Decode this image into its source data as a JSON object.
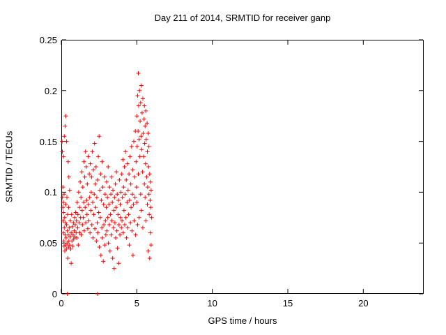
{
  "chart_data": {
    "type": "scatter",
    "title": "Day 211 of 2014, SRMTID for receiver ganp",
    "xlabel": "GPS time / hours",
    "ylabel": "SRMTID / TECUs",
    "xlim": [
      0,
      24
    ],
    "ylim": [
      0,
      0.25
    ],
    "grid": false,
    "legend": "none",
    "axis_color": "#000000",
    "xticks": {
      "values": [
        0,
        5,
        10,
        15,
        20
      ],
      "labels": [
        "0",
        "5",
        "10",
        "15",
        "20"
      ]
    },
    "yticks": {
      "values": [
        0,
        0.05,
        0.1,
        0.15,
        0.2,
        0.25
      ],
      "labels": [
        "0",
        "0.05",
        "0.1",
        "0.15",
        "0.2",
        "0.25"
      ]
    },
    "marker": {
      "shape": "plus",
      "color": "#ff0000",
      "size": 7
    },
    "series": [
      {
        "name": "SRMTID",
        "points": [
          [
            0.05,
            0.15
          ],
          [
            0.07,
            0.14
          ],
          [
            0.08,
            0.095
          ],
          [
            0.1,
            0.105
          ],
          [
            0.1,
            0.085
          ],
          [
            0.12,
            0.072
          ],
          [
            0.13,
            0.09
          ],
          [
            0.14,
            0.06
          ],
          [
            0.15,
            0.135
          ],
          [
            0.15,
            0.08
          ],
          [
            0.17,
            0.052
          ],
          [
            0.18,
            0.047
          ],
          [
            0.18,
            0.098
          ],
          [
            0.2,
            0.155
          ],
          [
            0.2,
            0.065
          ],
          [
            0.22,
            0.075
          ],
          [
            0.23,
            0.042
          ],
          [
            0.25,
            0.165
          ],
          [
            0.25,
            0.058
          ],
          [
            0.27,
            0.07
          ],
          [
            0.28,
            0.048
          ],
          [
            0.3,
            0.175
          ],
          [
            0.3,
            0.088
          ],
          [
            0.32,
            0.055
          ],
          [
            0.33,
            0.044
          ],
          [
            0.35,
            0.15
          ],
          [
            0.35,
            0.068
          ],
          [
            0.37,
            0.095
          ],
          [
            0.38,
            0.05
          ],
          [
            0.4,
            0.0
          ],
          [
            0.4,
            0.062
          ],
          [
            0.42,
            0.078
          ],
          [
            0.43,
            0.035
          ],
          [
            0.45,
            0.13
          ],
          [
            0.45,
            0.058
          ],
          [
            0.47,
            0.046
          ],
          [
            0.48,
            0.085
          ],
          [
            0.5,
            0.115
          ],
          [
            0.5,
            0.052
          ],
          [
            0.52,
            0.065
          ],
          [
            0.55,
            0.048
          ],
          [
            0.55,
            0.102
          ],
          [
            0.58,
            0.056
          ],
          [
            0.6,
            0.072
          ],
          [
            0.62,
            0.044
          ],
          [
            0.65,
            0.06
          ],
          [
            0.65,
            0.03
          ],
          [
            0.68,
            0.078
          ],
          [
            0.7,
            0.052
          ],
          [
            0.72,
            0.066
          ],
          [
            0.75,
            0.047
          ],
          [
            0.78,
            0.058
          ],
          [
            0.8,
            0.07
          ],
          [
            0.82,
            0.054
          ],
          [
            0.85,
            0.062
          ],
          [
            0.88,
            0.075
          ],
          [
            0.9,
            0.056
          ],
          [
            0.92,
            0.068
          ],
          [
            0.95,
            0.08
          ],
          [
            0.98,
            0.06
          ],
          [
            1.0,
            0.072
          ],
          [
            1.02,
            0.055
          ],
          [
            1.05,
            0.09
          ],
          [
            1.08,
            0.065
          ],
          [
            1.1,
            0.078
          ],
          [
            1.12,
            0.048
          ],
          [
            1.15,
            0.1
          ],
          [
            1.18,
            0.07
          ],
          [
            1.2,
            0.085
          ],
          [
            1.22,
            0.06
          ],
          [
            1.25,
            0.11
          ],
          [
            1.28,
            0.075
          ],
          [
            1.3,
            0.095
          ],
          [
            1.32,
            0.058
          ],
          [
            1.35,
            0.12
          ],
          [
            1.38,
            0.082
          ],
          [
            1.4,
            0.068
          ],
          [
            1.42,
            0.105
          ],
          [
            1.45,
            0.075
          ],
          [
            1.48,
            0.09
          ],
          [
            1.5,
            0.13
          ],
          [
            1.52,
            0.062
          ],
          [
            1.55,
            0.115
          ],
          [
            1.58,
            0.085
          ],
          [
            1.6,
            0.14
          ],
          [
            1.62,
            0.07
          ],
          [
            1.65,
            0.125
          ],
          [
            1.68,
            0.092
          ],
          [
            1.7,
            0.078
          ],
          [
            1.72,
            0.108
          ],
          [
            1.75,
            0.064
          ],
          [
            1.78,
            0.135
          ],
          [
            1.8,
            0.088
          ],
          [
            1.82,
            0.072
          ],
          [
            1.85,
            0.118
          ],
          [
            1.88,
            0.095
          ],
          [
            1.9,
            0.06
          ],
          [
            1.92,
            0.128
          ],
          [
            1.95,
            0.082
          ],
          [
            1.98,
            0.1
          ],
          [
            2.0,
            0.115
          ],
          [
            2.02,
            0.068
          ],
          [
            2.05,
            0.14
          ],
          [
            2.08,
            0.09
          ],
          [
            2.1,
            0.055
          ],
          [
            2.12,
            0.122
          ],
          [
            2.15,
            0.078
          ],
          [
            2.18,
            0.098
          ],
          [
            2.2,
            0.148
          ],
          [
            2.22,
            0.064
          ],
          [
            2.25,
            0.108
          ],
          [
            2.28,
            0.085
          ],
          [
            2.3,
            0.125
          ],
          [
            2.32,
            0.052
          ],
          [
            2.35,
            0.095
          ],
          [
            2.38,
            0.07
          ],
          [
            2.4,
            0.0
          ],
          [
            2.4,
            0.112
          ],
          [
            2.42,
            0.06
          ],
          [
            2.45,
            0.135
          ],
          [
            2.48,
            0.08
          ],
          [
            2.5,
            0.155
          ],
          [
            2.52,
            0.046
          ],
          [
            2.55,
            0.102
          ],
          [
            2.58,
            0.075
          ],
          [
            2.6,
            0.118
          ],
          [
            2.62,
            0.038
          ],
          [
            2.65,
            0.092
          ],
          [
            2.68,
            0.065
          ],
          [
            2.7,
            0.13
          ],
          [
            2.72,
            0.055
          ],
          [
            2.75,
            0.105
          ],
          [
            2.78,
            0.032
          ],
          [
            2.8,
            0.088
          ],
          [
            2.82,
            0.068
          ],
          [
            2.85,
            0.115
          ],
          [
            2.88,
            0.048
          ],
          [
            2.9,
            0.098
          ],
          [
            2.92,
            0.072
          ],
          [
            2.95,
            0.058
          ],
          [
            2.98,
            0.085
          ],
          [
            3.0,
            0.11
          ],
          [
            3.02,
            0.062
          ],
          [
            3.05,
            0.095
          ],
          [
            3.08,
            0.075
          ],
          [
            3.1,
            0.125
          ],
          [
            3.12,
            0.05
          ],
          [
            3.15,
            0.088
          ],
          [
            3.18,
            0.068
          ],
          [
            3.2,
            0.105
          ],
          [
            3.22,
            0.042
          ],
          [
            3.25,
            0.078
          ],
          [
            3.28,
            0.098
          ],
          [
            3.3,
            0.058
          ],
          [
            3.32,
            0.115
          ],
          [
            3.35,
            0.072
          ],
          [
            3.38,
            0.09
          ],
          [
            3.4,
            0.035
          ],
          [
            3.42,
            0.102
          ],
          [
            3.45,
            0.065
          ],
          [
            3.48,
            0.082
          ],
          [
            3.5,
            0.025
          ],
          [
            3.52,
            0.095
          ],
          [
            3.55,
            0.07
          ],
          [
            3.58,
            0.108
          ],
          [
            3.6,
            0.055
          ],
          [
            3.62,
            0.085
          ],
          [
            3.65,
            0.12
          ],
          [
            3.68,
            0.062
          ],
          [
            3.7,
            0.098
          ],
          [
            3.72,
            0.045
          ],
          [
            3.75,
            0.078
          ],
          [
            3.78,
            0.092
          ],
          [
            3.8,
            0.03
          ],
          [
            3.82,
            0.068
          ],
          [
            3.85,
            0.112
          ],
          [
            3.88,
            0.058
          ],
          [
            3.9,
            0.088
          ],
          [
            3.92,
            0.075
          ],
          [
            3.95,
            0.1
          ],
          [
            3.98,
            0.065
          ],
          [
            4.0,
            0.118
          ],
          [
            4.02,
            0.072
          ],
          [
            4.05,
            0.095
          ],
          [
            4.08,
            0.132
          ],
          [
            4.1,
            0.06
          ],
          [
            4.12,
            0.105
          ],
          [
            4.15,
            0.082
          ],
          [
            4.18,
            0.125
          ],
          [
            4.2,
            0.068
          ],
          [
            4.22,
            0.098
          ],
          [
            4.25,
            0.14
          ],
          [
            4.28,
            0.075
          ],
          [
            4.3,
            0.112
          ],
          [
            4.32,
            0.055
          ],
          [
            4.35,
            0.09
          ],
          [
            4.38,
            0.128
          ],
          [
            4.4,
            0.065
          ],
          [
            4.42,
            0.102
          ],
          [
            4.45,
            0.078
          ],
          [
            4.48,
            0.118
          ],
          [
            4.5,
            0.048
          ],
          [
            4.52,
            0.092
          ],
          [
            4.55,
            0.135
          ],
          [
            4.58,
            0.07
          ],
          [
            4.6,
            0.108
          ],
          [
            4.62,
            0.085
          ],
          [
            4.65,
            0.145
          ],
          [
            4.68,
            0.062
          ],
          [
            4.7,
            0.098
          ],
          [
            4.72,
            0.122
          ],
          [
            4.75,
            0.038
          ],
          [
            4.78,
            0.088
          ],
          [
            4.8,
            0.15
          ],
          [
            4.82,
            0.072
          ],
          [
            4.85,
            0.115
          ],
          [
            4.88,
            0.095
          ],
          [
            4.9,
            0.16
          ],
          [
            4.92,
            0.058
          ],
          [
            4.95,
            0.13
          ],
          [
            4.98,
            0.105
          ],
          [
            5.0,
            0.175
          ],
          [
            5.0,
            0.09
          ],
          [
            5.02,
            0.145
          ],
          [
            5.05,
            0.195
          ],
          [
            5.05,
            0.068
          ],
          [
            5.08,
            0.16
          ],
          [
            5.1,
            0.217
          ],
          [
            5.1,
            0.118
          ],
          [
            5.12,
            0.185
          ],
          [
            5.15,
            0.152
          ],
          [
            5.15,
            0.075
          ],
          [
            5.18,
            0.2
          ],
          [
            5.2,
            0.135
          ],
          [
            5.22,
            0.17
          ],
          [
            5.25,
            0.098
          ],
          [
            5.25,
            0.188
          ],
          [
            5.28,
            0.155
          ],
          [
            5.3,
            0.205
          ],
          [
            5.3,
            0.082
          ],
          [
            5.32,
            0.142
          ],
          [
            5.35,
            0.178
          ],
          [
            5.38,
            0.12
          ],
          [
            5.4,
            0.192
          ],
          [
            5.4,
            0.065
          ],
          [
            5.42,
            0.158
          ],
          [
            5.45,
            0.135
          ],
          [
            5.48,
            0.172
          ],
          [
            5.5,
            0.108
          ],
          [
            5.5,
            0.185
          ],
          [
            5.52,
            0.148
          ],
          [
            5.55,
            0.095
          ],
          [
            5.55,
            0.165
          ],
          [
            5.58,
            0.128
          ],
          [
            5.6,
            0.18
          ],
          [
            5.6,
            0.072
          ],
          [
            5.62,
            0.152
          ],
          [
            5.65,
            0.115
          ],
          [
            5.68,
            0.168
          ],
          [
            5.7,
            0.088
          ],
          [
            5.7,
            0.14
          ],
          [
            5.72,
            0.105
          ],
          [
            5.75,
            0.158
          ],
          [
            5.75,
            0.042
          ],
          [
            5.78,
            0.125
          ],
          [
            5.8,
            0.098
          ],
          [
            5.8,
            0.145
          ],
          [
            5.82,
            0.078
          ],
          [
            5.85,
            0.118
          ],
          [
            5.85,
            0.035
          ],
          [
            5.88,
            0.092
          ],
          [
            5.9,
            0.11
          ],
          [
            5.9,
            0.06
          ],
          [
            5.92,
            0.085
          ],
          [
            5.95,
            0.102
          ],
          [
            5.95,
            0.048
          ],
          [
            5.98,
            0.075
          ]
        ]
      }
    ]
  }
}
